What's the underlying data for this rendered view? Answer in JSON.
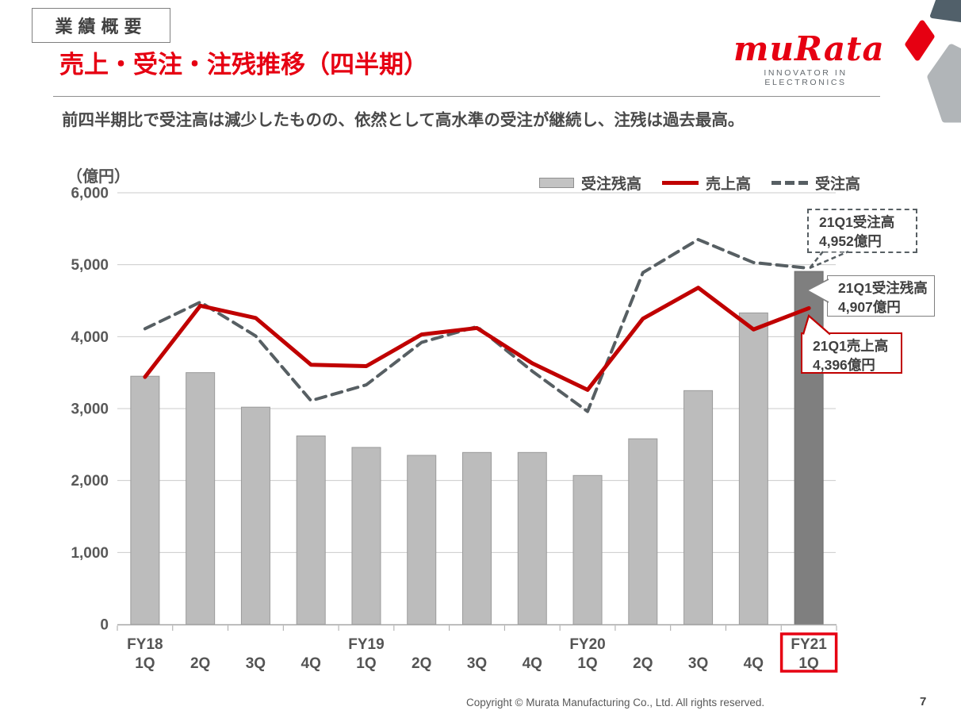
{
  "slide": {
    "tag": "業績概要",
    "title": "売上・受注・注残推移（四半期）",
    "subtitle": "前四半期比で受注高は減少したものの、依然として高水準の受注が継続し、注残は過去最高。",
    "logo": {
      "brand": "muRata",
      "tagline": "INNOVATOR IN ELECTRONICS"
    },
    "footer": {
      "copyright": "Copyright © Murata Manufacturing Co., Ltd. All rights reserved.",
      "page": "7"
    }
  },
  "chart_data": {
    "type": "combo (bar + line + dashed-line)",
    "unit_label": "（億円）",
    "categories": [
      {
        "fy": "FY18",
        "q": "1Q"
      },
      {
        "fy": "",
        "q": "2Q"
      },
      {
        "fy": "",
        "q": "3Q"
      },
      {
        "fy": "",
        "q": "4Q"
      },
      {
        "fy": "FY19",
        "q": "1Q"
      },
      {
        "fy": "",
        "q": "2Q"
      },
      {
        "fy": "",
        "q": "3Q"
      },
      {
        "fy": "",
        "q": "4Q"
      },
      {
        "fy": "FY20",
        "q": "1Q"
      },
      {
        "fy": "",
        "q": "2Q"
      },
      {
        "fy": "",
        "q": "3Q"
      },
      {
        "fy": "",
        "q": "4Q"
      },
      {
        "fy": "FY21",
        "q": "1Q"
      }
    ],
    "series": [
      {
        "name": "受注残高",
        "type": "bar",
        "color": "#bcbcbc",
        "border": "#9a9a9a",
        "highlight_last_color": "#7f7f7f",
        "values": [
          3450,
          3500,
          3020,
          2620,
          2460,
          2350,
          2390,
          2390,
          2070,
          2580,
          3250,
          4330,
          4907
        ]
      },
      {
        "name": "売上高",
        "type": "line",
        "color": "#c00000",
        "values": [
          3440,
          4430,
          4260,
          3610,
          3590,
          4030,
          4120,
          3630,
          3260,
          4250,
          4680,
          4100,
          4396
        ]
      },
      {
        "name": "受注高",
        "type": "dashed-line",
        "color": "#575f63",
        "values": [
          4110,
          4480,
          4010,
          3110,
          3330,
          3920,
          4140,
          3520,
          2960,
          4890,
          5350,
          5030,
          4952
        ]
      }
    ],
    "ylim": [
      0,
      6000
    ],
    "ytick_step": 1000,
    "yticks": [
      "0",
      "1,000",
      "2,000",
      "3,000",
      "4,000",
      "5,000",
      "6,000"
    ],
    "grid": "horizontal only",
    "legend_position": "top right above plot",
    "highlight": {
      "category": "FY21 1Q",
      "label_box_color": "#e60012",
      "bar_color": "#7f7f7f"
    },
    "callouts": [
      {
        "id": "orders",
        "line1": "21Q1受注高",
        "line2": "4,952億円",
        "style": "dashed gray box"
      },
      {
        "id": "backlog",
        "line1": "21Q1受注残高",
        "line2": "4,907億円",
        "style": "solid gray box"
      },
      {
        "id": "sales",
        "line1": "21Q1売上高",
        "line2": "4,396億円",
        "style": "solid red box"
      }
    ]
  }
}
